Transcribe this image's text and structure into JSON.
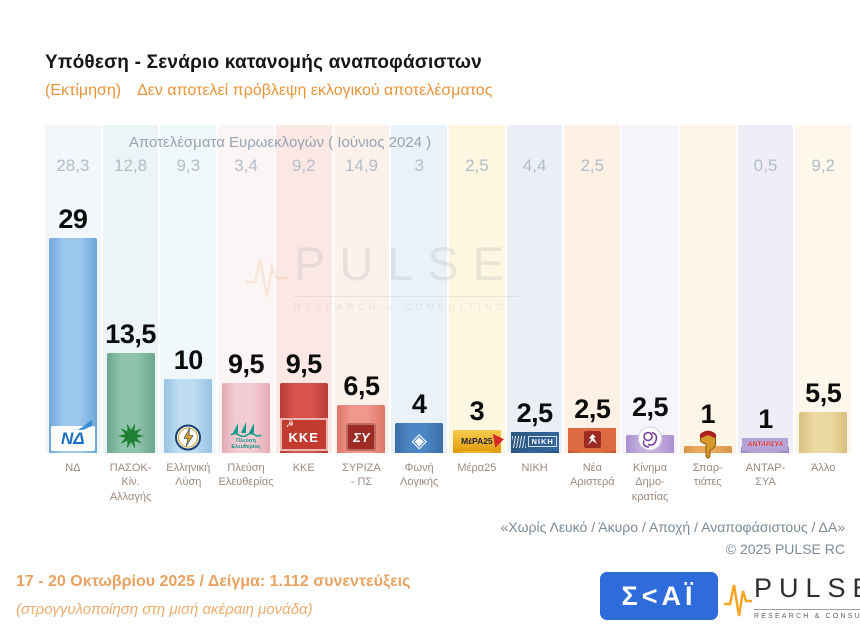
{
  "header": {
    "title": "Υπόθεση - Σενάριο κατανομής αναποφάσιστων",
    "subtitle_prefix": "(Εκτίμηση)",
    "subtitle": "Δεν αποτελεί πρόβλεψη εκλογικού αποτελέσματος"
  },
  "euro_results_header": "Αποτελέσματα Ευρωεκλογών  ( Ιούνιος 2024 )",
  "watermark": {
    "brand": "PULSE",
    "tagline": "RESEARCH & CONSULTING"
  },
  "parties": [
    {
      "name": "ΝΔ",
      "label": "ΝΔ",
      "value": 29,
      "value_display": "29",
      "euro_display": "28,3",
      "bar_color": "#9cc7ed",
      "bar_edge": "#6fa8d9",
      "tint": "#f1f7fb",
      "icon": "nd-flag",
      "logo_text": "ΝΔ"
    },
    {
      "name": "ΠΑΣΟΚ-Κίν. Αλλαγής",
      "label": "ΠΑΣΟΚ-Κίν.\nΑλλαγής",
      "value": 13.5,
      "value_display": "13,5",
      "euro_display": "12,8",
      "bar_color": "#8ec2ab",
      "bar_edge": "#6aa78e",
      "tint": "#edf4f7",
      "icon": "pasok-sun",
      "logo_text": ""
    },
    {
      "name": "Ελληνική Λύση",
      "label": "Ελληνική\nΛύση",
      "value": 10,
      "value_display": "10",
      "euro_display": "9,3",
      "bar_color": "#bedcf2",
      "bar_edge": "#97c3e2",
      "tint": "#f1f8fb",
      "icon": "compass",
      "logo_text": ""
    },
    {
      "name": "Πλεύση Ελευθερίας",
      "label": "Πλεύση\nΕλευθερίας",
      "value": 9.5,
      "value_display": "9,5",
      "euro_display": "3,4",
      "bar_color": "#f3ccd3",
      "bar_edge": "#e3aab4",
      "tint": "#fbf5f5",
      "icon": "sailboat",
      "logo_text": "Πλεύση Ελευθερίας"
    },
    {
      "name": "ΚΚΕ",
      "label": "ΚΚΕ",
      "value": 9.5,
      "value_display": "9,5",
      "euro_display": "9,2",
      "bar_color": "#d9544e",
      "bar_edge": "#b93b38",
      "tint": "#fbe8e5",
      "icon": "kke-emblem",
      "logo_text": "ΚΚΕ"
    },
    {
      "name": "ΣΥΡΙΖΑ-ΠΣ",
      "label": "ΣΥΡΙΖΑ\n- ΠΣ",
      "value": 6.5,
      "value_display": "6,5",
      "euro_display": "14,9",
      "bar_color": "#f0988c",
      "bar_edge": "#de7668",
      "tint": "#fdf1ec",
      "icon": "syriza-emblem",
      "logo_text": "ΣΥ"
    },
    {
      "name": "Φωνή Λογικής",
      "label": "Φωνή\nΛογικής",
      "value": 4,
      "value_display": "4",
      "euro_display": "3",
      "bar_color": "#4c86c4",
      "bar_edge": "#3a6da6",
      "tint": "#eaf2f8",
      "icon": "foni-diamond",
      "logo_text": ""
    },
    {
      "name": "Μέρα25",
      "label": "Μέρα25",
      "value": 3,
      "value_display": "3",
      "euro_display": "2,5",
      "bar_color": "#f0b32c",
      "bar_edge": "#d89a12",
      "tint": "#fdf7e2",
      "icon": "mera25-arrow",
      "logo_text": "ΜέΡΑ25"
    },
    {
      "name": "ΝΙΚΗ",
      "label": "ΝΙΚΗ",
      "value": 2.5,
      "value_display": "2,5",
      "euro_display": "4,4",
      "bar_color": "#33639f",
      "bar_edge": "#27507f",
      "tint": "#e9eff5",
      "icon": "niki-flag",
      "logo_text": "ΝΙΚΗ"
    },
    {
      "name": "Νέα Αριστερά",
      "label": "Νέα\nΑριστερά",
      "value": 2.5,
      "value_display": "2,5",
      "euro_display": "2,5",
      "bar_color": "#df6f45",
      "bar_edge": "#c55531",
      "tint": "#fdf1e5",
      "icon": "nea-aristera-figure",
      "logo_text": ""
    },
    {
      "name": "Κίνημα Δημοκρατίας",
      "label": "Κίνημα\nΔημο-\nκρατίας",
      "value": 2.5,
      "value_display": "2,5",
      "euro_display": "",
      "bar_color": "#c4b0de",
      "bar_edge": "#a98fd0",
      "tint": "#f6f4fa",
      "icon": "kd-flower",
      "logo_text": ""
    },
    {
      "name": "Σπαρτιάτες",
      "label": "Σπαρ-\nτιάτες",
      "value": 1,
      "value_display": "1",
      "euro_display": "",
      "bar_color": "#e9aa60",
      "bar_edge": "#d89548",
      "tint": "#fdf6e7",
      "icon": "spartan-helmet",
      "logo_text": ""
    },
    {
      "name": "ΑΝΤΑΡΣΥΑ",
      "label": "ΑΝΤΑΡ-\nΣΥΑ",
      "value": 1,
      "value_display": "1",
      "euro_display": "0,5",
      "bar_color": "#b5a5d5",
      "bar_edge": "#9c87c4",
      "tint": "#efeef7",
      "icon": "antarsya-wordmark",
      "logo_text": "ΑΝΤΑΡΣΥΑ"
    },
    {
      "name": "Άλλο",
      "label": "Άλλο",
      "value": 5.5,
      "value_display": "5,5",
      "euro_display": "9,2",
      "bar_color": "#ecd9a2",
      "bar_edge": "#d9bf7e",
      "tint": "#fdf8eb",
      "icon": "none",
      "logo_text": ""
    }
  ],
  "chart_data": {
    "type": "bar",
    "title": "Υπόθεση - Σενάριο κατανομής αναποφάσιστων",
    "subtitle": "(Εκτίμηση) Δεν αποτελεί πρόβλεψη εκλογικού αποτελέσματος",
    "categories": [
      "ΝΔ",
      "ΠΑΣΟΚ-Κίν. Αλλαγής",
      "Ελληνική Λύση",
      "Πλεύση Ελευθερίας",
      "ΚΚΕ",
      "ΣΥΡΙΖΑ-ΠΣ",
      "Φωνή Λογικής",
      "Μέρα25",
      "ΝΙΚΗ",
      "Νέα Αριστερά",
      "Κίνημα Δημοκρατίας",
      "Σπαρτιάτες",
      "ΑΝΤΑΡΣΥΑ",
      "Άλλο"
    ],
    "series": [
      {
        "name": "Εκτίμηση (17 - 20 Οκτωβρίου 2025)",
        "values": [
          29,
          13.5,
          10,
          9.5,
          9.5,
          6.5,
          4,
          3,
          2.5,
          2.5,
          2.5,
          1,
          1,
          5.5
        ]
      },
      {
        "name": "Αποτελέσματα Ευρωεκλογών (Ιούνιος 2024)",
        "values": [
          28.3,
          12.8,
          9.3,
          3.4,
          9.2,
          14.9,
          3,
          2.5,
          4.4,
          2.5,
          null,
          null,
          0.5,
          9.2
        ]
      }
    ],
    "xlabel": "",
    "ylabel": "",
    "ylim": [
      0,
      30
    ],
    "grid": false,
    "legend_position": "none"
  },
  "footnotes": {
    "exclusions": "«Χωρίς Λευκό / Άκυρο / Αποχή / Αναποφάσιστους / ΔΑ»",
    "copyright": "©  2025  PULSE RC"
  },
  "fieldwork": {
    "line1": "17 - 20 Οκτωβρίου 2025  /  Δείγμα:  1.112 συνεντεύξεις",
    "line2": "(στρογγυλοποίηση στη μισή ακέραιη μονάδα)"
  },
  "branding": {
    "skai": "Σ<ΑΪ",
    "pulse": "PULSE",
    "pulse_tagline": "RESEARCH & CONSULTING"
  },
  "colors": {
    "accent_orange": "#E8953C",
    "fieldwork_orange": "#E9A262",
    "euro_text": "#b3bdc7",
    "euro_header_text": "#96a3b1",
    "party_label_text": "#9b8a7f",
    "footnote_text": "#7d8b98",
    "value_text": "#0c0c0c",
    "skai_blue": "#2e6cdb",
    "pulse_orange": "#F5A623"
  }
}
